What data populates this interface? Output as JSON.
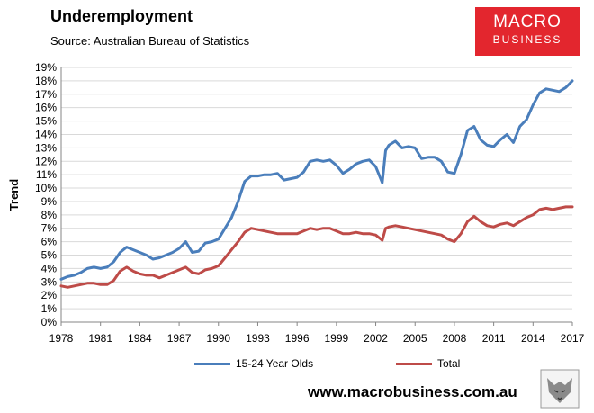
{
  "header": {
    "title": "Underemployment",
    "subtitle": "Source: Australian Bureau of Statistics"
  },
  "logo": {
    "line1": "MACRO",
    "line2": "BUSINESS"
  },
  "footer": {
    "url": "www.macrobusiness.com.au",
    "emblem_icon": "wolf-emblem-icon"
  },
  "colors": {
    "series1": "#4a7ebb",
    "series2": "#be4b48",
    "logo_bg": "#e3262e"
  },
  "chart_data": {
    "type": "line",
    "title": "Underemployment",
    "xlabel": "",
    "ylabel": "Trend",
    "xlim": [
      1978,
      2017
    ],
    "ylim": [
      0,
      19
    ],
    "grid": "horizontal",
    "legend": "bottom",
    "x_ticks": [
      "1978",
      "1981",
      "1984",
      "1987",
      "1990",
      "1993",
      "1996",
      "1999",
      "2002",
      "2005",
      "2008",
      "2011",
      "2014",
      "2017"
    ],
    "y_ticks": [
      "0%",
      "1%",
      "2%",
      "3%",
      "4%",
      "5%",
      "6%",
      "7%",
      "8%",
      "9%",
      "10%",
      "11%",
      "12%",
      "13%",
      "14%",
      "15%",
      "16%",
      "17%",
      "18%",
      "19%"
    ],
    "series": [
      {
        "name": "15-24 Year Olds",
        "color": "#4a7ebb",
        "x": [
          1978.0,
          1978.5,
          1979.0,
          1979.5,
          1980.0,
          1980.5,
          1981.0,
          1981.5,
          1982.0,
          1982.5,
          1983.0,
          1983.5,
          1984.0,
          1984.5,
          1985.0,
          1985.5,
          1986.0,
          1986.5,
          1987.0,
          1987.5,
          1988.0,
          1988.5,
          1989.0,
          1989.5,
          1990.0,
          1990.5,
          1991.0,
          1991.5,
          1992.0,
          1992.5,
          1993.0,
          1993.5,
          1994.0,
          1994.5,
          1995.0,
          1995.5,
          1996.0,
          1996.5,
          1997.0,
          1997.5,
          1998.0,
          1998.5,
          1999.0,
          1999.5,
          2000.0,
          2000.5,
          2001.0,
          2001.5,
          2002.0,
          2002.5,
          2002.75,
          2003.0,
          2003.5,
          2004.0,
          2004.5,
          2005.0,
          2005.5,
          2006.0,
          2006.5,
          2007.0,
          2007.5,
          2008.0,
          2008.5,
          2009.0,
          2009.5,
          2010.0,
          2010.5,
          2011.0,
          2011.5,
          2012.0,
          2012.5,
          2013.0,
          2013.5,
          2014.0,
          2014.5,
          2015.0,
          2015.5,
          2016.0,
          2016.5,
          2017.0
        ],
        "values": [
          3.2,
          3.4,
          3.5,
          3.7,
          4.0,
          4.1,
          4.0,
          4.1,
          4.5,
          5.2,
          5.6,
          5.4,
          5.2,
          5.0,
          4.7,
          4.8,
          5.0,
          5.2,
          5.5,
          6.0,
          5.2,
          5.3,
          5.9,
          6.0,
          6.2,
          7.0,
          7.8,
          9.0,
          10.5,
          10.9,
          10.9,
          11.0,
          11.0,
          11.1,
          10.6,
          10.7,
          10.8,
          11.2,
          12.0,
          12.1,
          12.0,
          12.1,
          11.7,
          11.1,
          11.4,
          11.8,
          12.0,
          12.1,
          11.6,
          10.4,
          12.8,
          13.2,
          13.5,
          13.0,
          13.1,
          13.0,
          12.2,
          12.3,
          12.3,
          12.0,
          11.2,
          11.1,
          12.5,
          14.3,
          14.6,
          13.6,
          13.2,
          13.1,
          13.6,
          14.0,
          13.4,
          14.6,
          15.1,
          16.2,
          17.1,
          17.4,
          17.3,
          17.2,
          17.5,
          18.0
        ]
      },
      {
        "name": "Total",
        "color": "#be4b48",
        "x": [
          1978.0,
          1978.5,
          1979.0,
          1979.5,
          1980.0,
          1980.5,
          1981.0,
          1981.5,
          1982.0,
          1982.5,
          1983.0,
          1983.5,
          1984.0,
          1984.5,
          1985.0,
          1985.5,
          1986.0,
          1986.5,
          1987.0,
          1987.5,
          1988.0,
          1988.5,
          1989.0,
          1989.5,
          1990.0,
          1990.5,
          1991.0,
          1991.5,
          1992.0,
          1992.5,
          1993.0,
          1993.5,
          1994.0,
          1994.5,
          1995.0,
          1995.5,
          1996.0,
          1996.5,
          1997.0,
          1997.5,
          1998.0,
          1998.5,
          1999.0,
          1999.5,
          2000.0,
          2000.5,
          2001.0,
          2001.5,
          2002.0,
          2002.5,
          2002.75,
          2003.0,
          2003.5,
          2004.0,
          2004.5,
          2005.0,
          2005.5,
          2006.0,
          2006.5,
          2007.0,
          2007.5,
          2008.0,
          2008.5,
          2009.0,
          2009.5,
          2010.0,
          2010.5,
          2011.0,
          2011.5,
          2012.0,
          2012.5,
          2013.0,
          2013.5,
          2014.0,
          2014.5,
          2015.0,
          2015.5,
          2016.0,
          2016.5,
          2017.0
        ],
        "values": [
          2.7,
          2.6,
          2.7,
          2.8,
          2.9,
          2.9,
          2.8,
          2.8,
          3.1,
          3.8,
          4.1,
          3.8,
          3.6,
          3.5,
          3.5,
          3.3,
          3.5,
          3.7,
          3.9,
          4.1,
          3.7,
          3.6,
          3.9,
          4.0,
          4.2,
          4.8,
          5.4,
          6.0,
          6.7,
          7.0,
          6.9,
          6.8,
          6.7,
          6.6,
          6.6,
          6.6,
          6.6,
          6.8,
          7.0,
          6.9,
          7.0,
          7.0,
          6.8,
          6.6,
          6.6,
          6.7,
          6.6,
          6.6,
          6.5,
          6.1,
          7.0,
          7.1,
          7.2,
          7.1,
          7.0,
          6.9,
          6.8,
          6.7,
          6.6,
          6.5,
          6.2,
          6.0,
          6.6,
          7.5,
          7.9,
          7.5,
          7.2,
          7.1,
          7.3,
          7.4,
          7.2,
          7.5,
          7.8,
          8.0,
          8.4,
          8.5,
          8.4,
          8.5,
          8.6,
          8.6
        ]
      }
    ]
  }
}
